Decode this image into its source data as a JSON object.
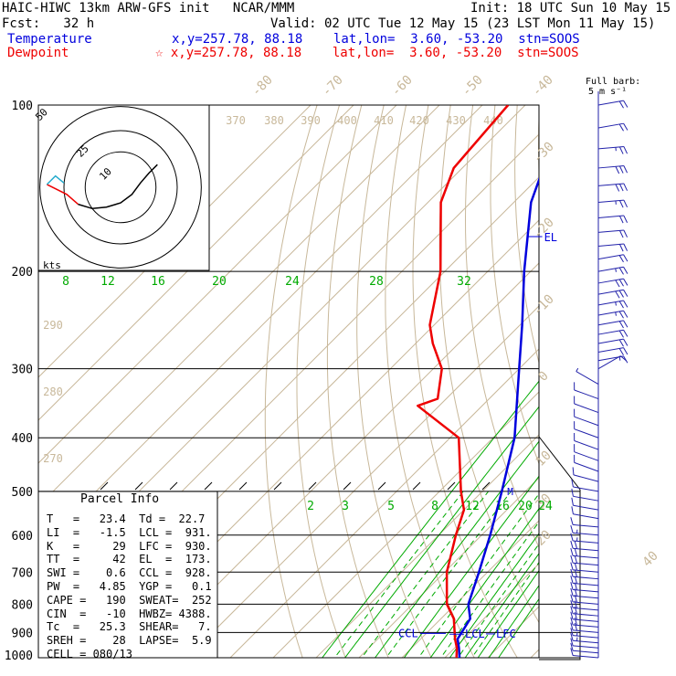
{
  "header": {
    "title_left": "HAIC-HIWC 13km ARW-GFS init   NCAR/MMM",
    "init": "Init: 18 UTC Sun 10 May 15",
    "fcst": "Fcst:   32 h",
    "valid": "Valid: 02 UTC Tue 12 May 15 (23 LST Mon 11 May 15)",
    "temperature_label": "Temperature",
    "temperature_info": "x,y=257.78, 88.18    lat,lon=  3.60, -53.20  stn=SOOS",
    "dewpoint_label": "Dewpoint",
    "dewpoint_info": "☆ x,y=257.78, 88.18    lat,lon=  3.60, -53.20  stn=SOOS",
    "barb_legend_1": "Full barb:",
    "barb_legend_2": "5 m s⁻¹"
  },
  "colors": {
    "temperature": "#0000dd",
    "dewpoint": "#ee0000",
    "isotherm": "#c8b89a",
    "mixing_ratio": "#00aa00",
    "barb": "#2222aa"
  },
  "chart_data": {
    "type": "line",
    "title": "",
    "ylabel": "",
    "pressure_levels": [
      100,
      200,
      300,
      400,
      500,
      600,
      700,
      800,
      900,
      1000
    ],
    "isotherm_labels": [
      "-80",
      "-70",
      "-60",
      "-50",
      "-40",
      "-30",
      "-20",
      "-10",
      "0",
      "10",
      "20",
      "30",
      "40"
    ],
    "theta_labels": [
      "370",
      "380",
      "390",
      "400",
      "410",
      "420",
      "430",
      "440"
    ],
    "dry_adiabat_labels": [
      "290",
      "280",
      "270"
    ],
    "mixing_ratio_labels_upper": [
      "8",
      "12",
      "16",
      "20",
      "24",
      "28",
      "32"
    ],
    "mixing_ratio_labels_lower": [
      "2",
      "3",
      "5",
      "8",
      "12",
      "16",
      "20",
      "24"
    ],
    "series": [
      {
        "name": "Temperature",
        "pressure": [
          1000,
          960,
          925,
          850,
          800,
          700,
          600,
          500,
          400,
          300,
          250,
          200,
          150,
          120,
          100
        ],
        "temperature": [
          23.4,
          21.0,
          18.6,
          16.8,
          13.0,
          8.0,
          2.0,
          -5.5,
          -15.0,
          -30.0,
          -39.5,
          -51.5,
          -66.0,
          -74.0,
          -77.0
        ]
      },
      {
        "name": "Dewpoint",
        "pressure": [
          1000,
          960,
          925,
          850,
          800,
          700,
          600,
          540,
          500,
          400,
          350,
          340,
          300,
          270,
          250,
          200,
          150,
          130,
          100
        ],
        "temperature": [
          22.7,
          20.5,
          18.0,
          13.0,
          8.0,
          0.5,
          -6.0,
          -10.0,
          -15.0,
          -28.0,
          -45.0,
          -42.0,
          -48.0,
          -56.0,
          -61.0,
          -71.0,
          -87.0,
          -92.0,
          -94.0
        ]
      }
    ],
    "levels_marked": [
      {
        "label": "EL",
        "pressure": 173
      },
      {
        "label": "M",
        "pressure": 500
      },
      {
        "label": "CCL",
        "pressure": 928
      },
      {
        "label": "LCL",
        "pressure": 931
      },
      {
        "label": "LFC",
        "pressure": 930
      }
    ],
    "hodograph": {
      "ring_labels": [
        "10",
        "25",
        "50"
      ],
      "units_label": "kts",
      "points": [
        [
          -52,
          2
        ],
        [
          -38,
          -5
        ],
        [
          -30,
          -12
        ],
        [
          -20,
          -15
        ],
        [
          -10,
          -14
        ],
        [
          0,
          -11
        ],
        [
          8,
          -5
        ],
        [
          14,
          3
        ],
        [
          20,
          10
        ],
        [
          26,
          16
        ]
      ]
    },
    "wind_barbs": [
      {
        "pressure": 100,
        "speed": 12,
        "dir": 80
      },
      {
        "pressure": 110,
        "speed": 12,
        "dir": 80
      },
      {
        "pressure": 120,
        "speed": 14,
        "dir": 85
      },
      {
        "pressure": 130,
        "speed": 15,
        "dir": 85
      },
      {
        "pressure": 140,
        "speed": 15,
        "dir": 85
      },
      {
        "pressure": 150,
        "speed": 14,
        "dir": 85
      },
      {
        "pressure": 160,
        "speed": 12,
        "dir": 85
      },
      {
        "pressure": 170,
        "speed": 11,
        "dir": 85
      },
      {
        "pressure": 180,
        "speed": 11,
        "dir": 85
      },
      {
        "pressure": 190,
        "speed": 12,
        "dir": 80
      },
      {
        "pressure": 200,
        "speed": 14,
        "dir": 80
      },
      {
        "pressure": 210,
        "speed": 15,
        "dir": 80
      },
      {
        "pressure": 220,
        "speed": 15,
        "dir": 80
      },
      {
        "pressure": 230,
        "speed": 14,
        "dir": 80
      },
      {
        "pressure": 240,
        "speed": 13,
        "dir": 80
      },
      {
        "pressure": 250,
        "speed": 12,
        "dir": 80
      },
      {
        "pressure": 260,
        "speed": 12,
        "dir": 80
      },
      {
        "pressure": 270,
        "speed": 11,
        "dir": 80
      },
      {
        "pressure": 280,
        "speed": 10,
        "dir": 80
      },
      {
        "pressure": 290,
        "speed": 8,
        "dir": 80
      },
      {
        "pressure": 300,
        "speed": 5,
        "dir": 60
      },
      {
        "pressure": 320,
        "speed": 4,
        "dir": 300
      },
      {
        "pressure": 340,
        "speed": 5,
        "dir": 290
      },
      {
        "pressure": 360,
        "speed": 6,
        "dir": 290
      },
      {
        "pressure": 380,
        "speed": 6,
        "dir": 290
      },
      {
        "pressure": 400,
        "speed": 6,
        "dir": 290
      },
      {
        "pressure": 420,
        "speed": 7,
        "dir": 290
      },
      {
        "pressure": 440,
        "speed": 7,
        "dir": 290
      },
      {
        "pressure": 460,
        "speed": 7,
        "dir": 290
      },
      {
        "pressure": 480,
        "speed": 7,
        "dir": 285
      },
      {
        "pressure": 500,
        "speed": 7,
        "dir": 280
      },
      {
        "pressure": 520,
        "speed": 6,
        "dir": 280
      },
      {
        "pressure": 540,
        "speed": 6,
        "dir": 280
      },
      {
        "pressure": 560,
        "speed": 6,
        "dir": 280
      },
      {
        "pressure": 580,
        "speed": 7,
        "dir": 275
      },
      {
        "pressure": 600,
        "speed": 8,
        "dir": 275
      },
      {
        "pressure": 620,
        "speed": 9,
        "dir": 275
      },
      {
        "pressure": 640,
        "speed": 10,
        "dir": 275
      },
      {
        "pressure": 660,
        "speed": 10,
        "dir": 275
      },
      {
        "pressure": 680,
        "speed": 11,
        "dir": 275
      },
      {
        "pressure": 700,
        "speed": 11,
        "dir": 275
      },
      {
        "pressure": 720,
        "speed": 10,
        "dir": 275
      },
      {
        "pressure": 740,
        "speed": 10,
        "dir": 275
      },
      {
        "pressure": 760,
        "speed": 10,
        "dir": 275
      },
      {
        "pressure": 780,
        "speed": 10,
        "dir": 275
      },
      {
        "pressure": 800,
        "speed": 10,
        "dir": 275
      },
      {
        "pressure": 820,
        "speed": 10,
        "dir": 275
      },
      {
        "pressure": 840,
        "speed": 10,
        "dir": 275
      },
      {
        "pressure": 860,
        "speed": 10,
        "dir": 275
      },
      {
        "pressure": 880,
        "speed": 10,
        "dir": 275
      },
      {
        "pressure": 900,
        "speed": 10,
        "dir": 275
      },
      {
        "pressure": 920,
        "speed": 9,
        "dir": 275
      },
      {
        "pressure": 940,
        "speed": 8,
        "dir": 275
      },
      {
        "pressure": 960,
        "speed": 7,
        "dir": 275
      },
      {
        "pressure": 980,
        "speed": 6,
        "dir": 275
      },
      {
        "pressure": 1000,
        "speed": 5,
        "dir": 275
      }
    ]
  },
  "parcel_info": {
    "title": "Parcel Info",
    "rows": [
      "T   =   23.4  Td =  22.7",
      "LI  =   -1.5  LCL =  931.",
      "K   =     29  LFC =  930.",
      "TT  =     42  EL  =  173.",
      "SWI =    0.6  CCL =  928.",
      "PW  =   4.85  YGP =   0.1",
      "CAPE =   190  SWEAT=  252",
      "CIN  =   -10  HWBZ= 4388.",
      "Tc  =   25.3  SHEAR=   7.",
      "SREH =    28  LAPSE=  5.9",
      "CELL = 080/13"
    ]
  }
}
